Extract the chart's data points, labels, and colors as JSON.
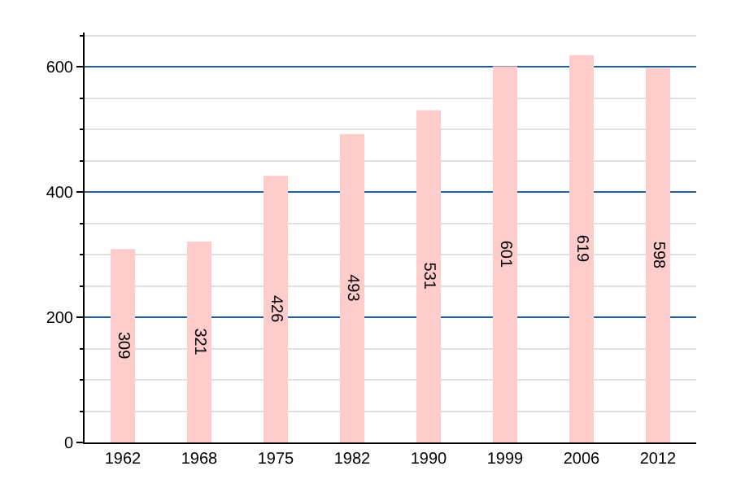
{
  "chart_data": {
    "type": "bar",
    "categories": [
      "1962",
      "1968",
      "1975",
      "1982",
      "1990",
      "1999",
      "2006",
      "2012"
    ],
    "values": [
      309,
      321,
      426,
      493,
      531,
      601,
      619,
      598
    ],
    "color": "#ffcccc",
    "data_labels": true,
    "ylim": [
      0,
      655
    ],
    "yticks": [
      0,
      {
        "value": 50,
        "label": null
      },
      {
        "value": 100,
        "label": null
      },
      {
        "value": 150,
        "label": null
      },
      200,
      {
        "value": 250,
        "label": null
      },
      {
        "value": 300,
        "label": null
      },
      {
        "value": 350,
        "label": null
      },
      400,
      {
        "value": 450,
        "label": null
      },
      {
        "value": 500,
        "label": null
      },
      {
        "value": 550,
        "label": null
      },
      600,
      {
        "value": 650,
        "label": null
      }
    ],
    "grid": true
  }
}
